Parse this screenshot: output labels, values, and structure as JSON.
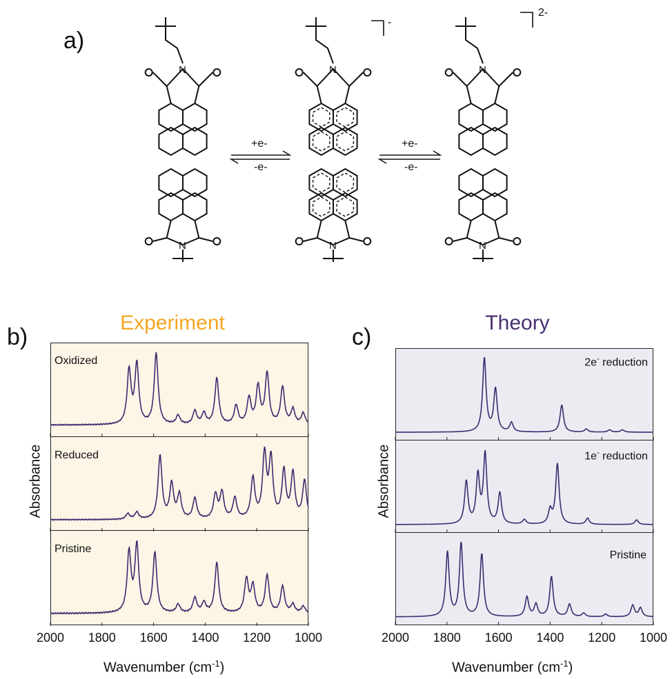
{
  "figure": {
    "panel_a": "a)",
    "panel_b": "b)",
    "panel_c": "c)",
    "exp_title": "Experiment",
    "theory_title": "Theory",
    "colors": {
      "exp_title": "#f5a623",
      "theory_title": "#4a2f70",
      "exp_bg": "#fdf5e6",
      "theory_bg": "#ecebf2",
      "spectrum": "#3c2a6e"
    }
  },
  "scheme": {
    "arrow1_top": "+e-",
    "arrow1_bottom": "-e-",
    "arrow2_top": "+e-",
    "arrow2_bottom": "-e-",
    "charge1": "-",
    "charge2": "2-"
  },
  "chart_data": [
    {
      "type": "line",
      "panel": "b",
      "title": "Experiment",
      "xlabel": "Wavenumber (cm-1)",
      "ylabel": "Absorbance",
      "xlim": [
        2000,
        1000
      ],
      "xticks": [
        2000,
        1800,
        1600,
        1400,
        1200,
        1000
      ],
      "series": [
        {
          "name": "Oxidized",
          "peaks": [
            [
              1695,
              0.72
            ],
            [
              1665,
              0.8
            ],
            [
              1590,
              0.95
            ],
            [
              1505,
              0.12
            ],
            [
              1440,
              0.18
            ],
            [
              1405,
              0.15
            ],
            [
              1355,
              0.62
            ],
            [
              1280,
              0.25
            ],
            [
              1230,
              0.35
            ],
            [
              1195,
              0.5
            ],
            [
              1160,
              0.68
            ],
            [
              1100,
              0.5
            ],
            [
              1060,
              0.2
            ],
            [
              1020,
              0.15
            ]
          ],
          "baseline": 0.05
        },
        {
          "name": "Reduced",
          "peaks": [
            [
              1700,
              0.08
            ],
            [
              1665,
              0.1
            ],
            [
              1575,
              0.92
            ],
            [
              1530,
              0.5
            ],
            [
              1500,
              0.35
            ],
            [
              1440,
              0.3
            ],
            [
              1360,
              0.35
            ],
            [
              1335,
              0.38
            ],
            [
              1285,
              0.3
            ],
            [
              1215,
              0.58
            ],
            [
              1170,
              0.92
            ],
            [
              1145,
              0.85
            ],
            [
              1095,
              0.68
            ],
            [
              1060,
              0.65
            ],
            [
              1015,
              0.55
            ]
          ],
          "baseline": 0.05
        },
        {
          "name": "Pristine",
          "peaks": [
            [
              1695,
              0.72
            ],
            [
              1665,
              0.8
            ],
            [
              1595,
              0.72
            ],
            [
              1505,
              0.1
            ],
            [
              1440,
              0.18
            ],
            [
              1405,
              0.12
            ],
            [
              1355,
              0.6
            ],
            [
              1240,
              0.4
            ],
            [
              1215,
              0.32
            ],
            [
              1160,
              0.45
            ],
            [
              1100,
              0.32
            ],
            [
              1060,
              0.1
            ],
            [
              1020,
              0.08
            ]
          ],
          "baseline": 0.05
        }
      ]
    },
    {
      "type": "line",
      "panel": "c",
      "title": "Theory",
      "xlabel": "Wavenumber (cm-1)",
      "ylabel": "Absorbance",
      "xlim": [
        2000,
        1000
      ],
      "xticks": [
        2000,
        1800,
        1600,
        1400,
        1200,
        1000
      ],
      "series": [
        {
          "name": "2e- reduction",
          "peaks": [
            [
              1655,
              0.95
            ],
            [
              1612,
              0.55
            ],
            [
              1550,
              0.12
            ],
            [
              1355,
              0.35
            ],
            [
              1260,
              0.04
            ],
            [
              1170,
              0.03
            ],
            [
              1120,
              0.03
            ]
          ],
          "baseline": 0.0
        },
        {
          "name": "1e- reduction",
          "peaks": [
            [
              1725,
              0.55
            ],
            [
              1680,
              0.62
            ],
            [
              1652,
              0.9
            ],
            [
              1595,
              0.4
            ],
            [
              1500,
              0.06
            ],
            [
              1400,
              0.18
            ],
            [
              1372,
              0.78
            ],
            [
              1255,
              0.08
            ],
            [
              1065,
              0.06
            ]
          ],
          "baseline": 0.0
        },
        {
          "name": "Pristine",
          "peaks": [
            [
              1798,
              0.72
            ],
            [
              1745,
              0.82
            ],
            [
              1665,
              0.7
            ],
            [
              1490,
              0.22
            ],
            [
              1455,
              0.14
            ],
            [
              1395,
              0.45
            ],
            [
              1325,
              0.14
            ],
            [
              1270,
              0.04
            ],
            [
              1185,
              0.03
            ],
            [
              1080,
              0.13
            ],
            [
              1050,
              0.1
            ]
          ],
          "baseline": 0.0
        }
      ]
    }
  ]
}
